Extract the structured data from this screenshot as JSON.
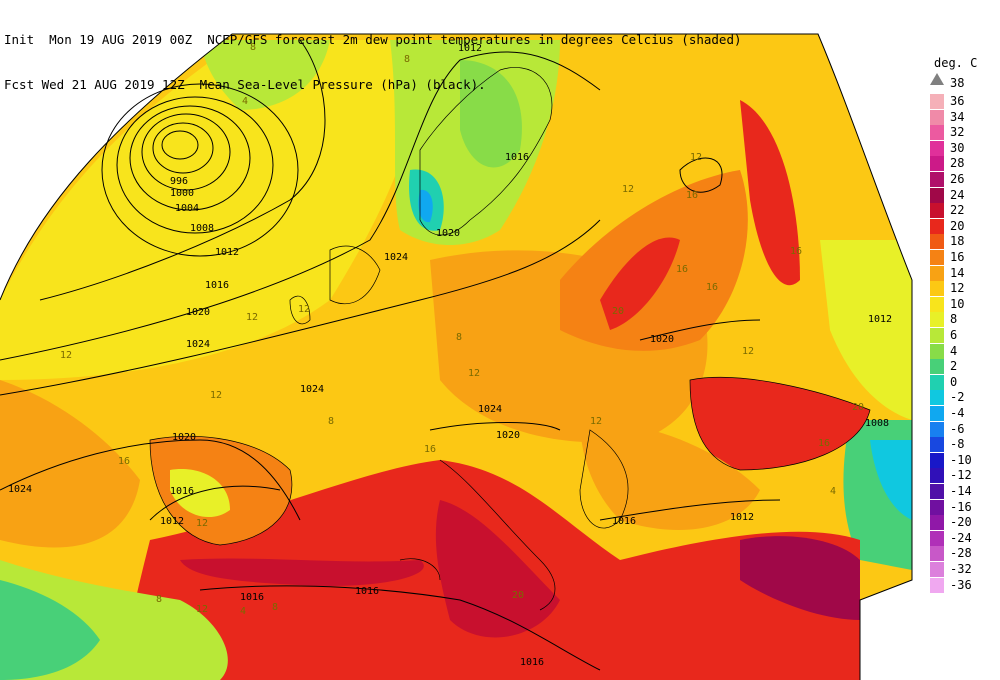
{
  "header": {
    "line1": "Init  Mon 19 AUG 2019 00Z  NCEP/GFS forecast 2m dew point temperatures in degrees Celcius (shaded)",
    "line2": "Fcst Wed 21 AUG 2019 12Z  Mean Sea-Level Pressure (hPa) (black)."
  },
  "legend": {
    "unit": "deg. C",
    "top_value": "38",
    "items": [
      {
        "label": "36",
        "color": "#f5b0b8"
      },
      {
        "label": "34",
        "color": "#f08aa8"
      },
      {
        "label": "32",
        "color": "#ec5aa0"
      },
      {
        "label": "30",
        "color": "#e0309a"
      },
      {
        "label": "28",
        "color": "#cc1a88"
      },
      {
        "label": "26",
        "color": "#b0106a"
      },
      {
        "label": "24",
        "color": "#a00848"
      },
      {
        "label": "22",
        "color": "#c8102e"
      },
      {
        "label": "20",
        "color": "#e8281c"
      },
      {
        "label": "18",
        "color": "#f05a14"
      },
      {
        "label": "16",
        "color": "#f58214"
      },
      {
        "label": "14",
        "color": "#f8a214"
      },
      {
        "label": "12",
        "color": "#fcc814"
      },
      {
        "label": "10",
        "color": "#f8e41c"
      },
      {
        "label": "8",
        "color": "#e8f028"
      },
      {
        "label": "6",
        "color": "#b8e838"
      },
      {
        "label": "4",
        "color": "#88dc48"
      },
      {
        "label": "2",
        "color": "#48d078"
      },
      {
        "label": "0",
        "color": "#20d0b0"
      },
      {
        "label": "-2",
        "color": "#10c8e0"
      },
      {
        "label": "-4",
        "color": "#10a8f0"
      },
      {
        "label": "-6",
        "color": "#1880f0"
      },
      {
        "label": "-8",
        "color": "#1848e0"
      },
      {
        "label": "-10",
        "color": "#1818c8"
      },
      {
        "label": "-12",
        "color": "#3010b8"
      },
      {
        "label": "-14",
        "color": "#5010a8"
      },
      {
        "label": "-16",
        "color": "#7010a0"
      },
      {
        "label": "-20",
        "color": "#9018a8"
      },
      {
        "label": "-24",
        "color": "#b030b8"
      },
      {
        "label": "-28",
        "color": "#c858c8"
      },
      {
        "label": "-32",
        "color": "#dc80dc"
      },
      {
        "label": "-36",
        "color": "#f0a8f0"
      }
    ]
  },
  "isobar_labels": [
    "996",
    "1000",
    "1004",
    "1008",
    "1012",
    "1016",
    "1020",
    "1024",
    "1024",
    "1024",
    "1020",
    "1016",
    "1012",
    "1016",
    "1012",
    "1020",
    "1024",
    "1020",
    "1020",
    "1016",
    "1012",
    "1008",
    "1016",
    "1012",
    "1016",
    "1024",
    "1016"
  ],
  "dewpoint_labels": [
    "8",
    "4",
    "8",
    "12",
    "12",
    "16",
    "12",
    "12",
    "8",
    "12",
    "16",
    "16",
    "12",
    "20",
    "20",
    "12",
    "16",
    "16",
    "12",
    "20",
    "16",
    "12",
    "12",
    "16",
    "8",
    "4",
    "12",
    "8",
    "8",
    "4"
  ]
}
